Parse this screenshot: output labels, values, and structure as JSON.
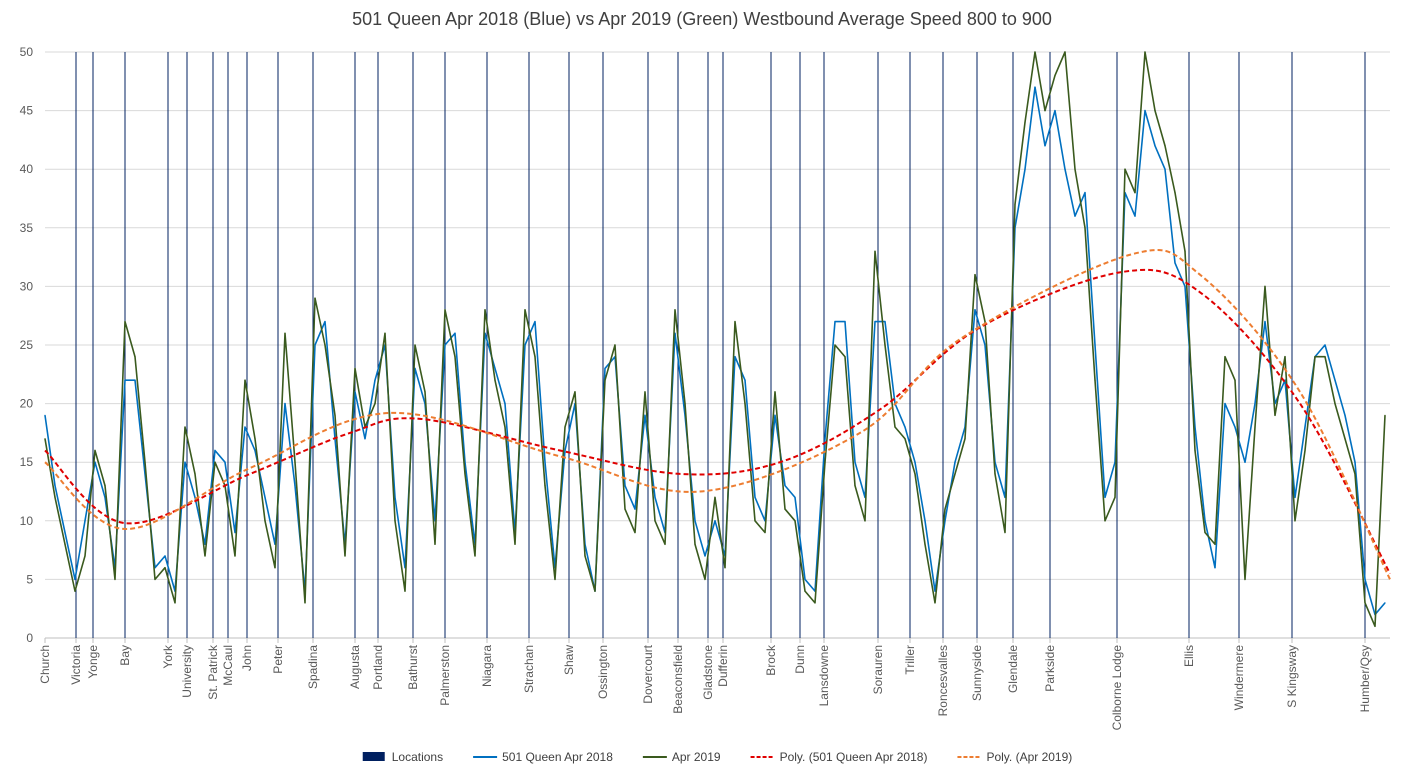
{
  "chart_data": {
    "type": "line",
    "title": "501 Queen Apr 2018 (Blue) vs Apr 2019 (Green) Westbound Average Speed 800 to 900",
    "xlabel": "",
    "ylabel": "",
    "ylim": [
      0,
      50
    ],
    "yticks": [
      0,
      5,
      10,
      15,
      20,
      25,
      30,
      35,
      40,
      45,
      50
    ],
    "xlim": [
      0,
      134.5
    ],
    "grid": "horizontal",
    "legend_position": "bottom",
    "colors": {
      "locations": "#002060",
      "blue": "#0070C0",
      "green": "#3A5A1E",
      "poly_blue": "#E00000",
      "poly_green": "#ED7D31"
    },
    "locations": [
      {
        "label": "Church",
        "x": 0
      },
      {
        "label": "Victoria",
        "x": 3.1
      },
      {
        "label": "Yonge",
        "x": 4.8
      },
      {
        "label": "Bay",
        "x": 8.0
      },
      {
        "label": "York",
        "x": 12.3
      },
      {
        "label": "University",
        "x": 14.2
      },
      {
        "label": "St. Patrick",
        "x": 16.8
      },
      {
        "label": "McCaul",
        "x": 18.3
      },
      {
        "label": "John",
        "x": 20.2
      },
      {
        "label": "Peter",
        "x": 23.3
      },
      {
        "label": "Spadina",
        "x": 26.8
      },
      {
        "label": "Augusta",
        "x": 31.0
      },
      {
        "label": "Portland",
        "x": 33.3
      },
      {
        "label": "Bathurst",
        "x": 36.8
      },
      {
        "label": "Palmerston",
        "x": 40.0
      },
      {
        "label": "Niagara",
        "x": 44.2
      },
      {
        "label": "Strachan",
        "x": 48.4
      },
      {
        "label": "Shaw",
        "x": 52.4
      },
      {
        "label": "Ossington",
        "x": 55.8
      },
      {
        "label": "Dovercourt",
        "x": 60.3
      },
      {
        "label": "Beaconsfield",
        "x": 63.3
      },
      {
        "label": "Gladstone",
        "x": 66.3
      },
      {
        "label": "Dufferin",
        "x": 67.8
      },
      {
        "label": "Brock",
        "x": 72.6
      },
      {
        "label": "Dunn",
        "x": 75.5
      },
      {
        "label": "Lansdowne",
        "x": 77.9
      },
      {
        "label": "Sorauren",
        "x": 83.3
      },
      {
        "label": "Triller",
        "x": 86.5
      },
      {
        "label": "Roncesvalles",
        "x": 89.8
      },
      {
        "label": "Sunnyside",
        "x": 93.2
      },
      {
        "label": "Glendale",
        "x": 96.8
      },
      {
        "label": "Parkside",
        "x": 100.5
      },
      {
        "label": "Colborne Lodge",
        "x": 107.2
      },
      {
        "label": "Ellis",
        "x": 114.4
      },
      {
        "label": "Windermere",
        "x": 119.4
      },
      {
        "label": "S Kingsway",
        "x": 124.7
      },
      {
        "label": "Humber/Qsy",
        "x": 132.0
      }
    ],
    "series": [
      {
        "name": "501 Queen Apr 2018",
        "values": [
          19,
          13,
          9,
          5,
          10,
          15,
          12,
          6,
          22,
          22,
          14,
          6,
          7,
          4,
          15,
          12,
          8,
          16,
          15,
          9,
          18,
          16,
          12,
          8,
          20,
          13,
          4,
          25,
          27,
          17,
          8,
          21,
          17,
          22,
          25,
          12,
          6,
          23,
          20,
          10,
          25,
          26,
          15,
          8,
          26,
          23,
          20,
          9,
          25,
          27,
          15,
          6,
          16,
          20,
          8,
          4,
          23,
          24,
          13,
          11,
          19,
          12,
          9,
          26,
          19,
          10,
          7,
          10,
          7,
          24,
          22,
          12,
          10,
          19,
          13,
          12,
          5,
          4,
          17,
          27,
          27,
          15,
          12,
          27,
          27,
          20,
          18,
          15,
          10,
          4,
          10,
          15,
          18,
          28,
          25,
          15,
          12,
          35,
          40,
          47,
          42,
          45,
          40,
          36,
          38,
          25,
          12,
          15,
          38,
          36,
          45,
          42,
          40,
          32,
          30,
          18,
          10,
          6,
          20,
          18,
          15,
          20,
          27,
          20,
          22,
          12,
          18,
          24,
          25,
          22,
          19,
          15,
          5,
          2,
          3
        ]
      },
      {
        "name": "Apr 2019",
        "values": [
          17,
          12,
          8,
          4,
          7,
          16,
          13,
          5,
          27,
          24,
          15,
          5,
          6,
          3,
          18,
          14,
          7,
          15,
          13,
          7,
          22,
          17,
          10,
          6,
          26,
          15,
          3,
          29,
          25,
          19,
          7,
          23,
          18,
          20,
          26,
          10,
          4,
          25,
          21,
          8,
          28,
          24,
          14,
          7,
          28,
          22,
          18,
          8,
          28,
          24,
          13,
          5,
          18,
          21,
          7,
          4,
          22,
          25,
          11,
          9,
          21,
          10,
          8,
          28,
          20,
          8,
          5,
          12,
          6,
          27,
          20,
          10,
          9,
          21,
          11,
          10,
          4,
          3,
          15,
          25,
          24,
          13,
          10,
          33,
          25,
          18,
          17,
          14,
          8,
          3,
          11,
          14,
          17,
          31,
          27,
          14,
          9,
          37,
          44,
          50,
          45,
          48,
          50,
          40,
          35,
          22,
          10,
          12,
          40,
          38,
          50,
          45,
          42,
          38,
          33,
          16,
          9,
          8,
          24,
          22,
          5,
          18,
          30,
          19,
          24,
          10,
          16,
          24,
          24,
          20,
          17,
          14,
          3,
          1,
          19
        ]
      },
      {
        "name": "Poly. (501 Queen Apr 2018)",
        "style": "dashed",
        "x": [
          0,
          8,
          20.5,
          30.5,
          37.5,
          51.5,
          63.5,
          73.5,
          83.5,
          93.5,
          107.5,
          115.5,
          125.5,
          134.5
        ],
        "values": [
          16,
          9.8,
          14,
          17.5,
          18.7,
          16,
          14,
          15,
          19.5,
          26.5,
          31.2,
          29.5,
          20,
          5.5
        ]
      },
      {
        "name": "Poly. (Apr 2019)",
        "style": "dashed",
        "x": [
          0,
          8,
          20.5,
          34.5,
          51.5,
          65.5,
          81.5,
          91.5,
          108.5,
          115.5,
          125.5,
          134.5
        ],
        "values": [
          15,
          9.3,
          14.5,
          19.2,
          15.5,
          12.5,
          17.5,
          25.5,
          32.7,
          31,
          21,
          5
        ]
      }
    ],
    "legend": [
      "Locations",
      "501 Queen Apr 2018",
      "Apr 2019",
      "Poly. (501 Queen Apr 2018)",
      "Poly. (Apr 2019)"
    ]
  }
}
